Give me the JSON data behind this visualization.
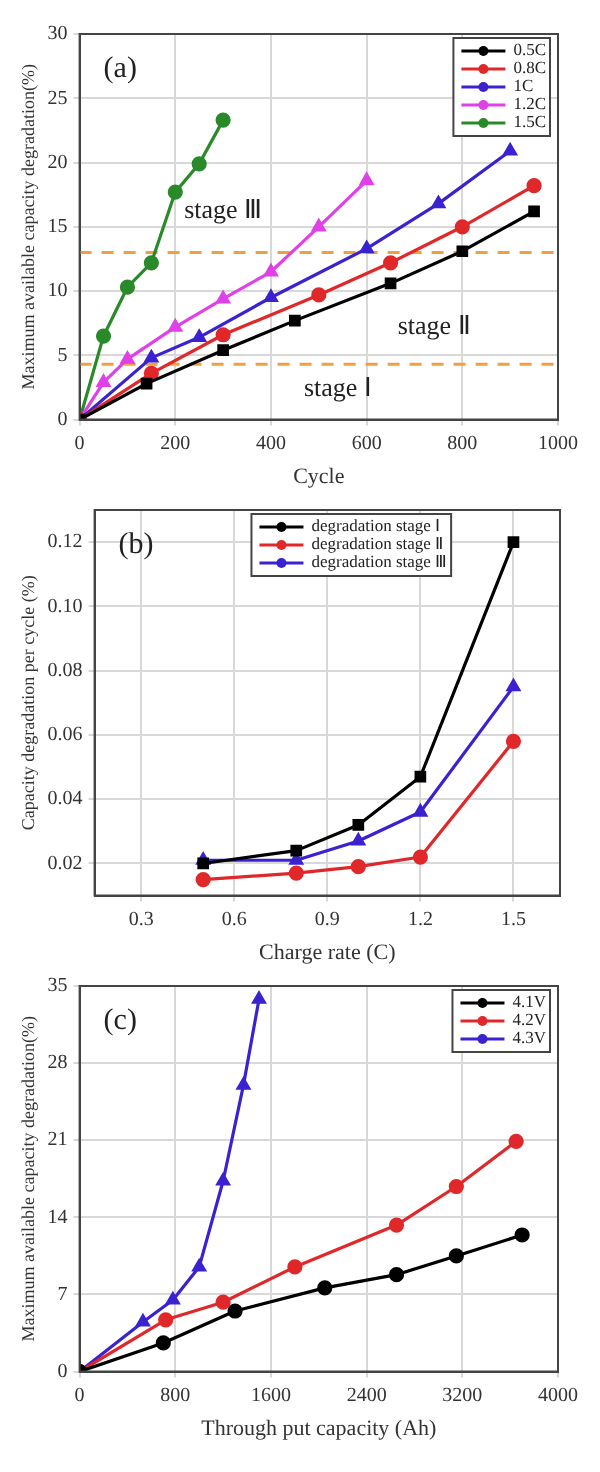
{
  "chart_data": [
    {
      "type": "line",
      "title": "(a)",
      "xlabel": "Cycle",
      "ylabel": "Maximum available capacity degradation(%)",
      "xlim": [
        0,
        1000
      ],
      "xticks": [
        0,
        200,
        400,
        600,
        800,
        1000
      ],
      "ylim": [
        0,
        30
      ],
      "yticks": [
        0,
        5,
        10,
        15,
        20,
        25,
        30
      ],
      "grid": true,
      "legend": "top right",
      "series": [
        {
          "name": "0.5C",
          "color": "#000000",
          "marker": "square",
          "x": [
            0,
            140,
            300,
            450,
            650,
            800,
            950
          ],
          "values": [
            0,
            2.8,
            5.4,
            7.7,
            10.6,
            13.1,
            16.2
          ]
        },
        {
          "name": "0.8C",
          "color": "#e0282a",
          "marker": "circle",
          "x": [
            0,
            150,
            300,
            500,
            650,
            800,
            950
          ],
          "values": [
            0,
            3.6,
            6.6,
            9.7,
            12.2,
            15,
            18.2
          ]
        },
        {
          "name": "1C",
          "color": "#3a22d0",
          "marker": "triangle",
          "x": [
            0,
            150,
            250,
            400,
            600,
            750,
            900
          ],
          "values": [
            0,
            4.8,
            6.4,
            9.5,
            13.3,
            16.8,
            20.9
          ]
        },
        {
          "name": "1.2C",
          "color": "#e040e8",
          "marker": "triangle",
          "x": [
            0,
            50,
            100,
            200,
            300,
            400,
            500,
            600
          ],
          "values": [
            0,
            2.9,
            4.7,
            7.2,
            9.4,
            11.5,
            15,
            18.6
          ]
        },
        {
          "name": "1.5C",
          "color": "#2a8a2a",
          "marker": "circle",
          "x": [
            0,
            50,
            100,
            150,
            200,
            250,
            300
          ],
          "values": [
            0,
            6.5,
            10.3,
            12.2,
            17.7,
            19.9,
            23.3
          ]
        }
      ],
      "ref_lines": [
        {
          "axis": "y",
          "value": 13,
          "color": "#f0a040",
          "line_style": "dashed"
        },
        {
          "axis": "y",
          "value": 4.3,
          "color": "#f0a040",
          "line_style": "dashed"
        }
      ],
      "annotations": [
        "stage Ⅲ",
        "stage Ⅱ",
        "stage Ⅰ"
      ]
    },
    {
      "type": "line",
      "title": "(b)",
      "xlabel": "Charge rate (C)",
      "ylabel": "Capacity degradation per cycle (%)",
      "x": [
        0.5,
        0.8,
        1.0,
        1.2,
        1.5
      ],
      "xlim": [
        0.15,
        1.65
      ],
      "xticks": [
        0.3,
        0.6,
        0.9,
        1.2,
        1.5
      ],
      "ylim": [
        0.01,
        0.13
      ],
      "yticks": [
        0.02,
        0.04,
        0.06,
        0.08,
        {
          "value": 0.1,
          "label": "0.10"
        },
        0.12
      ],
      "grid": true,
      "legend": "top",
      "series": [
        {
          "name": "degradation stage Ⅰ",
          "color": "#000000",
          "marker": "square",
          "values": [
            0.02,
            0.024,
            0.032,
            0.047,
            0.12
          ]
        },
        {
          "name": "degradation stage Ⅱ",
          "color": "#e0282a",
          "marker": "circle",
          "values": [
            0.015,
            0.017,
            0.019,
            0.022,
            0.058
          ]
        },
        {
          "name": "degradation stage Ⅲ",
          "color": "#3a22d0",
          "marker": "triangle",
          "values": [
            0.021,
            0.021,
            0.027,
            0.036,
            0.075
          ]
        }
      ]
    },
    {
      "type": "line",
      "title": "(c)",
      "xlabel": "Through put capacity (Ah)",
      "ylabel": "Maximum available capacity degradation(%)",
      "xlim": [
        0,
        4000
      ],
      "xticks": [
        0,
        800,
        1600,
        2400,
        3200,
        4000
      ],
      "ylim": [
        0,
        35
      ],
      "yticks": [
        0,
        7,
        14,
        21,
        28,
        35
      ],
      "grid": true,
      "legend": "top right",
      "series": [
        {
          "name": "4.1V",
          "color": "#000000",
          "marker": "circle",
          "x": [
            0,
            700,
            1300,
            2050,
            2650,
            3150,
            3700
          ],
          "values": [
            0,
            2.6,
            5.5,
            7.6,
            8.8,
            10.5,
            12.4
          ]
        },
        {
          "name": "4.2V",
          "color": "#e0282a",
          "marker": "circle",
          "x": [
            0,
            720,
            1200,
            1800,
            2650,
            3150,
            3650
          ],
          "values": [
            0,
            4.7,
            6.3,
            9.5,
            13.3,
            16.8,
            20.9
          ]
        },
        {
          "name": "4.3V",
          "color": "#3a22d0",
          "marker": "triangle",
          "x": [
            0,
            530,
            780,
            1000,
            1200,
            1370,
            1500
          ],
          "values": [
            0,
            4.5,
            6.5,
            9.5,
            17.3,
            26,
            33.8
          ]
        }
      ]
    }
  ]
}
